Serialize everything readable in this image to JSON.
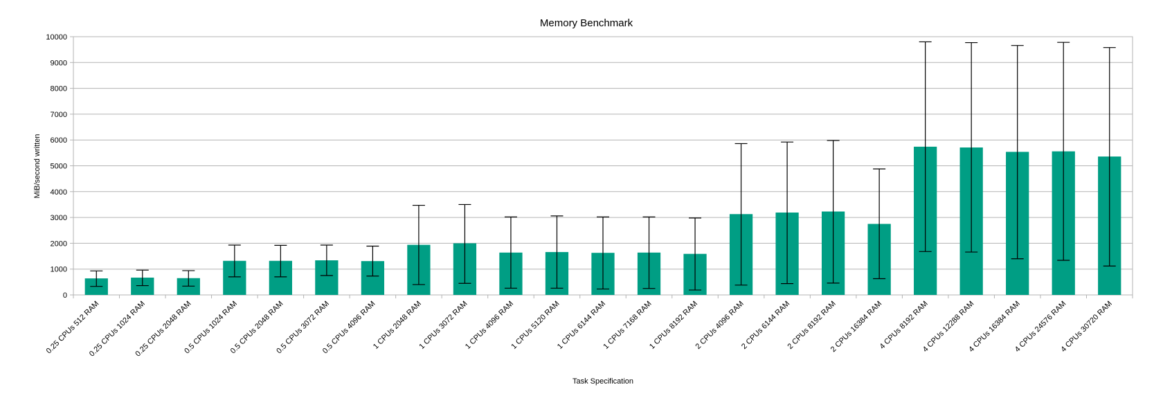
{
  "chart_data": {
    "type": "bar",
    "title": "Memory Benchmark",
    "xlabel": "Task Specification",
    "ylabel": "MiB/second written",
    "ylim": [
      0,
      10000
    ],
    "yticks": [
      0,
      1000,
      2000,
      3000,
      4000,
      5000,
      6000,
      7000,
      8000,
      9000,
      10000
    ],
    "grid": true,
    "bar_color": "#009e84",
    "categories": [
      "0.25 CPUs 512 RAM",
      "0.25 CPUs 1024 RAM",
      "0.25 CPUs 2048 RAM",
      "0.5 CPUs 1024 RAM",
      "0.5 CPUs 2048 RAM",
      "0.5 CPUs 3072 RAM",
      "0.5 CPUs 4096 RAM",
      "1 CPUs 2048 RAM",
      "1 CPUs 3072 RAM",
      "1 CPUs 4096 RAM",
      "1 CPUs 5120 RAM",
      "1 CPUs 6144 RAM",
      "1 CPUs 7168 RAM",
      "1 CPUs 8192 RAM",
      "2 CPUs 4096 RAM",
      "2 CPUs 6144 RAM",
      "2 CPUs 8192 RAM",
      "2 CPUs 16384 RAM",
      "4 CPUs 8192 RAM",
      "4 CPUs 12288 RAM",
      "4 CPUs 16384 RAM",
      "4 CPUs 24576 RAM",
      "4 CPUs 30720 RAM"
    ],
    "values": [
      640,
      670,
      650,
      1320,
      1320,
      1340,
      1310,
      1940,
      2000,
      1640,
      1660,
      1630,
      1640,
      1590,
      3130,
      3190,
      3230,
      2750,
      5740,
      5710,
      5540,
      5560,
      5360
    ],
    "error_low": [
      330,
      360,
      340,
      700,
      700,
      750,
      730,
      400,
      450,
      260,
      260,
      230,
      250,
      190,
      380,
      440,
      460,
      630,
      1680,
      1660,
      1400,
      1340,
      1120
    ],
    "error_high": [
      930,
      960,
      940,
      1930,
      1920,
      1930,
      1890,
      3470,
      3500,
      3020,
      3060,
      3020,
      3020,
      2980,
      5860,
      5920,
      5980,
      4880,
      9800,
      9770,
      9660,
      9780,
      9580
    ]
  }
}
